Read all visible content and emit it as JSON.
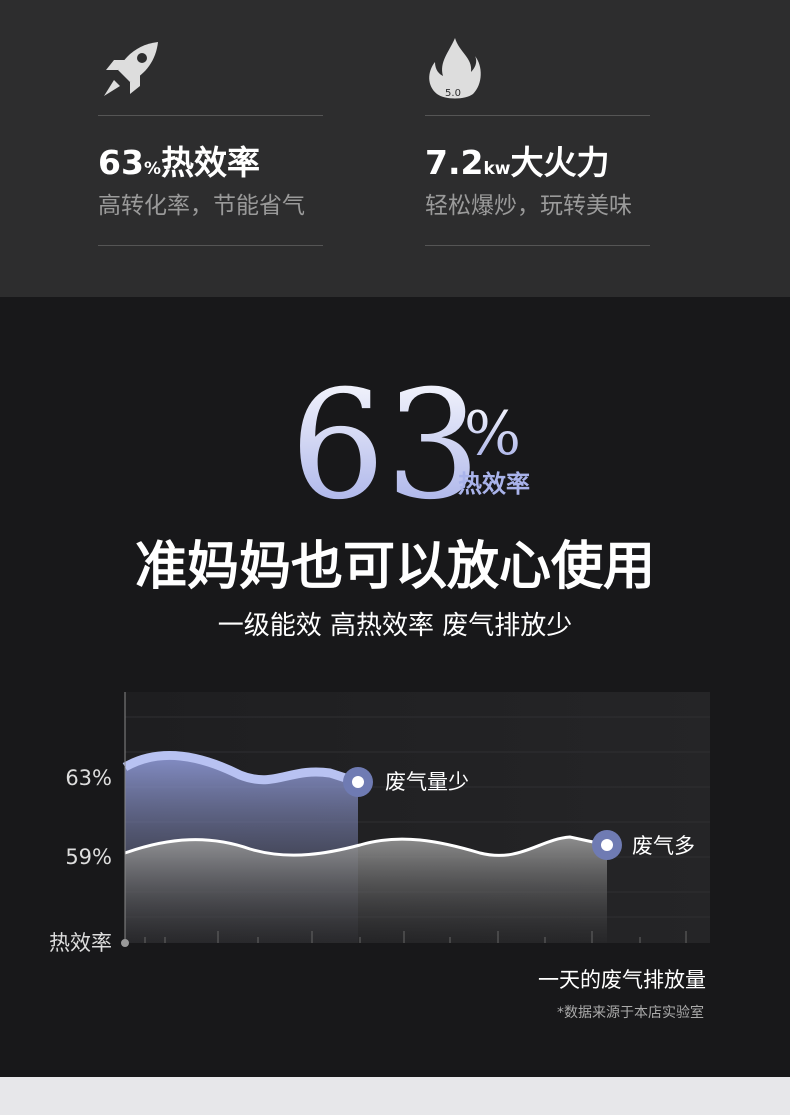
{
  "features": [
    {
      "value": "63",
      "unit": "%",
      "title": "热效率",
      "desc": "高转化率，节能省气"
    },
    {
      "value": "7.2",
      "unit": "kw",
      "title": "大火力",
      "desc": "轻松爆炒，玩转美味",
      "badge": "5.0"
    }
  ],
  "hero": {
    "number": "63",
    "unit": "%",
    "caption": "热效率",
    "headline": "准妈妈也可以放心使用",
    "subhead": "一级能效 高热效率 废气排放少"
  },
  "graph": {
    "y_labels": [
      "63%",
      "59%"
    ],
    "y_axis": "热效率",
    "annotations": [
      "废气量少",
      "废气多"
    ],
    "x_axis": "一天的废气排放量",
    "note": "*数据来源于本店实验室"
  }
}
